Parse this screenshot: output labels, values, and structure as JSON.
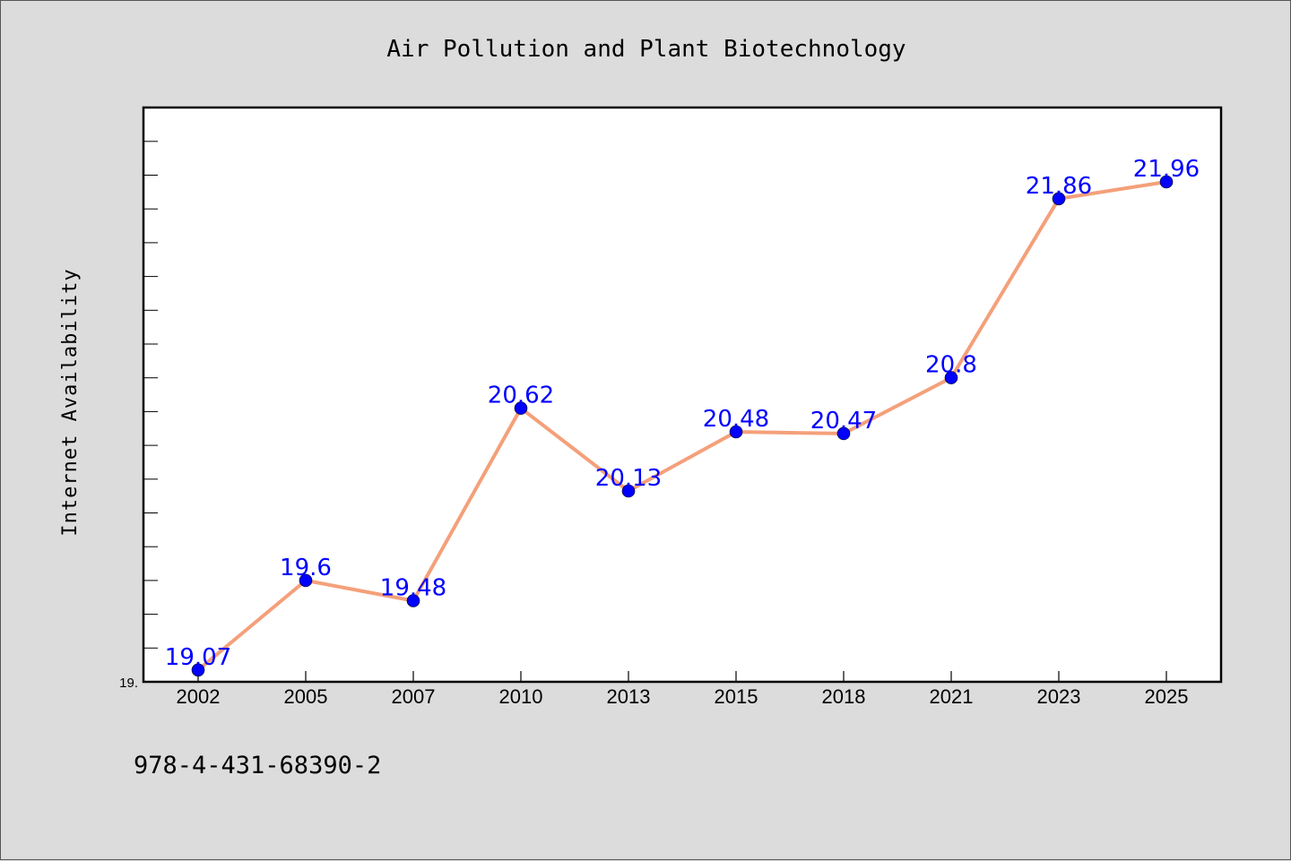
{
  "chart_data": {
    "type": "line",
    "title": "Air Pollution and Plant Biotechnology",
    "ylabel": "Internet Availability",
    "xlabel": "",
    "categories": [
      "2002",
      "2005",
      "2007",
      "2010",
      "2013",
      "2015",
      "2018",
      "2021",
      "2023",
      "2025"
    ],
    "series": [
      {
        "values": [
          19.07,
          19.6,
          19.48,
          20.62,
          20.13,
          20.48,
          20.47,
          20.8,
          21.86,
          21.96
        ],
        "color": "#f4a07a",
        "marker_color": "#0000ff",
        "data_labels": [
          "19.07",
          "19.6",
          "19.48",
          "20.62",
          "20.13",
          "20.48",
          "20.47",
          "20.8",
          "21.86",
          "21.96"
        ]
      }
    ],
    "yticks": [
      "19."
    ],
    "ylim": [
      19.0,
      22.4
    ],
    "grid": false,
    "legend": "none",
    "label_color": "#0000ff",
    "background": "#dcdcdc",
    "plot_background": "#ffffff"
  },
  "footer": {
    "text": "978-4-431-68390-2"
  }
}
